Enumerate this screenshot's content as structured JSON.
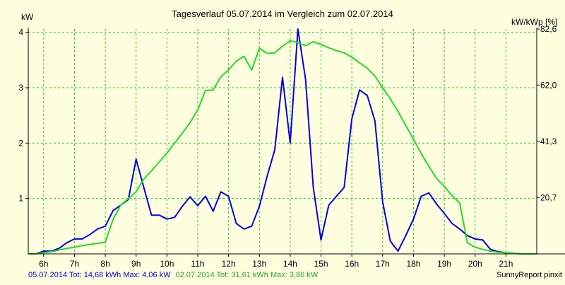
{
  "chart_data": {
    "type": "line",
    "title": "Tagesverlauf 05.07.2014 im Vergleich zum 02.07.2014",
    "y_left_label": "kW",
    "y_right_label": "kW/kWp [%]",
    "x_range": [
      5.5,
      22.0
    ],
    "y_left_range": [
      0,
      4.06
    ],
    "y_right_range": [
      0,
      82.6
    ],
    "y_left_ticks": [
      {
        "value": 1,
        "label": "1"
      },
      {
        "value": 2,
        "label": "2"
      },
      {
        "value": 3,
        "label": "3"
      },
      {
        "value": 4,
        "label": "4"
      }
    ],
    "y_right_ticks": [
      {
        "value": 20.7,
        "label": "20,7"
      },
      {
        "value": 41.3,
        "label": "41,3"
      },
      {
        "value": 62.0,
        "label": "62,0"
      },
      {
        "value": 82.6,
        "label": "82,6"
      }
    ],
    "x_ticks": [
      {
        "value": 6,
        "label": "6h"
      },
      {
        "value": 7,
        "label": "7h"
      },
      {
        "value": 8,
        "label": "8h"
      },
      {
        "value": 9,
        "label": "9h"
      },
      {
        "value": 10,
        "label": "10h"
      },
      {
        "value": 11,
        "label": "11h"
      },
      {
        "value": 12,
        "label": "12h"
      },
      {
        "value": 13,
        "label": "13h"
      },
      {
        "value": 14,
        "label": "14h"
      },
      {
        "value": 15,
        "label": "15h"
      },
      {
        "value": 16,
        "label": "16h"
      },
      {
        "value": 17,
        "label": "17h"
      },
      {
        "value": 18,
        "label": "18h"
      },
      {
        "value": 19,
        "label": "19h"
      },
      {
        "value": 20,
        "label": "20h"
      },
      {
        "value": 21,
        "label": "21h"
      }
    ],
    "grid": true,
    "series": [
      {
        "color": "#0000e0",
        "x": [
          5.5,
          5.75,
          6.0,
          6.25,
          6.5,
          6.75,
          7.0,
          7.25,
          7.5,
          7.75,
          8.0,
          8.25,
          8.5,
          8.75,
          9.0,
          9.25,
          9.5,
          9.75,
          10.0,
          10.25,
          10.5,
          10.75,
          11.0,
          11.25,
          11.5,
          11.75,
          12.0,
          12.25,
          12.5,
          12.75,
          13.0,
          13.25,
          13.5,
          13.75,
          14.0,
          14.25,
          14.5,
          14.75,
          15.0,
          15.25,
          15.5,
          15.75,
          16.0,
          16.25,
          16.5,
          16.75,
          17.0,
          17.25,
          17.5,
          17.75,
          18.0,
          18.25,
          18.5,
          18.75,
          19.0,
          19.25,
          19.5,
          19.75,
          20.0,
          20.25,
          20.5,
          20.75,
          21.0,
          21.25,
          21.5,
          21.75,
          22.0
        ],
        "y": [
          0,
          0,
          0.05,
          0.05,
          0.1,
          0.2,
          0.27,
          0.27,
          0.35,
          0.45,
          0.5,
          0.78,
          0.88,
          0.98,
          1.71,
          1.2,
          0.7,
          0.7,
          0.63,
          0.66,
          0.86,
          1.03,
          0.87,
          1.04,
          0.77,
          1.12,
          1.04,
          0.55,
          0.45,
          0.5,
          0.86,
          1.4,
          1.88,
          3.19,
          2.0,
          4.06,
          3.15,
          1.2,
          0.25,
          0.88,
          1.04,
          1.2,
          2.44,
          2.96,
          2.86,
          2.4,
          0.94,
          0.23,
          0.05,
          0.33,
          0.63,
          1.04,
          1.1,
          0.9,
          0.73,
          0.55,
          0.45,
          0.33,
          0.27,
          0.25,
          0.08,
          0.04,
          0.02,
          0.01,
          0,
          0,
          0
        ]
      },
      {
        "color": "#22dd22",
        "x": [
          5.5,
          5.75,
          6.0,
          6.25,
          6.5,
          6.75,
          7.0,
          7.25,
          7.5,
          7.75,
          8.0,
          8.25,
          8.5,
          8.75,
          9.0,
          9.25,
          9.5,
          9.75,
          10.0,
          10.25,
          10.5,
          10.75,
          11.0,
          11.25,
          11.5,
          11.75,
          12.0,
          12.25,
          12.5,
          12.75,
          13.0,
          13.25,
          13.5,
          13.75,
          14.0,
          14.25,
          14.5,
          14.75,
          15.0,
          15.25,
          15.5,
          15.75,
          16.0,
          16.25,
          16.5,
          16.75,
          17.0,
          17.25,
          17.5,
          17.75,
          18.0,
          18.25,
          18.5,
          18.75,
          19.0,
          19.25,
          19.5,
          19.75,
          20.0,
          20.25,
          20.5,
          20.75,
          21.0,
          21.25,
          21.5,
          21.75,
          22.0
        ],
        "y": [
          0,
          0,
          0.02,
          0.04,
          0.07,
          0.1,
          0.12,
          0.15,
          0.17,
          0.19,
          0.21,
          0.62,
          0.88,
          1.0,
          1.12,
          1.35,
          1.5,
          1.66,
          1.82,
          2.0,
          2.18,
          2.37,
          2.6,
          2.95,
          2.96,
          3.2,
          3.32,
          3.48,
          3.57,
          3.32,
          3.71,
          3.62,
          3.63,
          3.75,
          3.85,
          3.81,
          3.76,
          3.83,
          3.78,
          3.72,
          3.67,
          3.63,
          3.55,
          3.45,
          3.35,
          3.21,
          3.0,
          2.8,
          2.57,
          2.32,
          2.07,
          1.81,
          1.58,
          1.36,
          1.22,
          1.05,
          0.92,
          0.2,
          0.12,
          0.08,
          0.05,
          0.03,
          0.02,
          0.01,
          0,
          0,
          0
        ]
      }
    ]
  },
  "footer": {
    "series1_text": "05.07.2014 Tot: 14,68 kWh Max: 4,06 kW",
    "series2_text": "02.07.2014 Tot: 31,61 kWh Max: 3,86 kW",
    "credit": "SunnyReport pinxit"
  },
  "colors": {
    "background": "#ffffe0",
    "grid": "#22cc22",
    "axis": "#000000"
  }
}
